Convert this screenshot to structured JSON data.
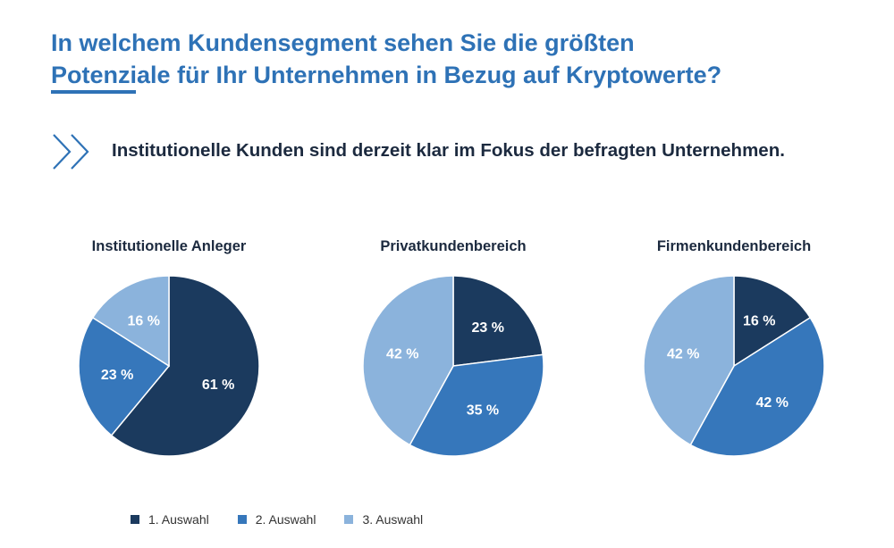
{
  "page": {
    "title_line1": "In welchem Kundensegment sehen Sie die größten",
    "title_line2": "Potenziale für Ihr Unternehmen in Bezug auf Kryptowerte?",
    "subtitle": "Institutionelle Kunden sind derzeit klar im Fokus der befragten Unternehmen.",
    "accent_color": "#2e72b6",
    "chevron_icon": "double-chevron-right-icon"
  },
  "chart_data": [
    {
      "type": "pie",
      "title": "Institutionelle Anleger",
      "slices": [
        {
          "label": "1. Auswahl",
          "value": 61,
          "display": "61 %"
        },
        {
          "label": "2. Auswahl",
          "value": 23,
          "display": "23 %"
        },
        {
          "label": "3. Auswahl",
          "value": 16,
          "display": "16 %"
        }
      ]
    },
    {
      "type": "pie",
      "title": "Privatkundenbereich",
      "slices": [
        {
          "label": "1. Auswahl",
          "value": 23,
          "display": "23 %"
        },
        {
          "label": "2. Auswahl",
          "value": 35,
          "display": "35 %"
        },
        {
          "label": "3. Auswahl",
          "value": 42,
          "display": "42 %"
        }
      ]
    },
    {
      "type": "pie",
      "title": "Firmenkundenbereich",
      "slices": [
        {
          "label": "1. Auswahl",
          "value": 16,
          "display": "16 %"
        },
        {
          "label": "2. Auswahl",
          "value": 42,
          "display": "42 %"
        },
        {
          "label": "3. Auswahl",
          "value": 42,
          "display": "42 %"
        }
      ]
    }
  ],
  "legend": [
    {
      "label": "1. Auswahl",
      "color": "#1b3a5e"
    },
    {
      "label": "2. Auswahl",
      "color": "#3677bb"
    },
    {
      "label": "3. Auswahl",
      "color": "#8bb3dc"
    }
  ]
}
